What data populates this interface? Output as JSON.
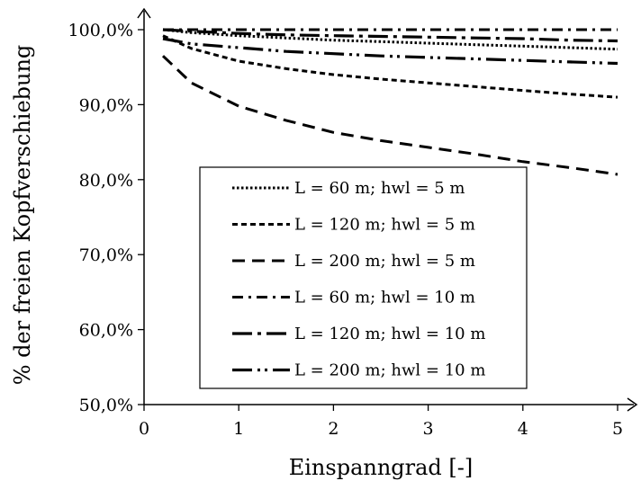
{
  "chart_data": {
    "type": "line",
    "xlabel": "Einspanngrad [-]",
    "ylabel": "% der freien Kopfverschiebung",
    "xlim": [
      0,
      5
    ],
    "ylim": [
      50,
      100
    ],
    "x_ticks": [
      0,
      1,
      2,
      3,
      4,
      5
    ],
    "x_tick_labels": [
      "0",
      "1",
      "2",
      "3",
      "4",
      "5"
    ],
    "y_ticks": [
      50,
      60,
      70,
      80,
      90,
      100
    ],
    "y_tick_labels": [
      "50,0%",
      "60,0%",
      "70,0%",
      "80,0%",
      "90,0%",
      "100,0%"
    ],
    "grid": false,
    "legend_position": "center",
    "series": [
      {
        "name": "L = 60 m; hwl = 5 m",
        "dash": "dotted",
        "x": [
          0.2,
          0.5,
          1,
          1.5,
          2,
          2.5,
          3,
          3.5,
          4,
          4.5,
          5
        ],
        "y": [
          100,
          99.6,
          99.2,
          98.9,
          98.6,
          98.4,
          98.2,
          98.0,
          97.8,
          97.6,
          97.4
        ]
      },
      {
        "name": "L = 120 m; hwl = 5 m",
        "dash": "short-dash",
        "x": [
          0.2,
          0.5,
          1,
          1.5,
          2,
          2.5,
          3,
          3.5,
          4,
          4.5,
          5
        ],
        "y": [
          99.2,
          97.5,
          95.8,
          94.8,
          94.0,
          93.4,
          92.9,
          92.4,
          91.9,
          91.4,
          91.0
        ]
      },
      {
        "name": "L = 200 m; hwl = 5 m",
        "dash": "long-dash",
        "x": [
          0.2,
          0.5,
          1,
          1.5,
          2,
          2.5,
          3,
          3.5,
          4,
          4.5,
          5
        ],
        "y": [
          96.5,
          92.9,
          89.8,
          87.9,
          86.3,
          85.2,
          84.3,
          83.4,
          82.4,
          81.6,
          80.7
        ]
      },
      {
        "name": "L = 60 m; hwl = 10 m",
        "dash": "dash-dot",
        "x": [
          0.2,
          0.5,
          1,
          1.5,
          2,
          2.5,
          3,
          3.5,
          4,
          4.5,
          5
        ],
        "y": [
          100,
          100,
          100,
          100,
          100,
          100,
          100,
          100,
          100,
          100,
          100
        ]
      },
      {
        "name": "L = 120 m; hwl = 10 m",
        "dash": "long-dash-dot",
        "x": [
          0.2,
          0.5,
          1,
          1.5,
          2,
          2.5,
          3,
          3.5,
          4,
          4.5,
          5
        ],
        "y": [
          100,
          99.8,
          99.5,
          99.3,
          99.2,
          99.1,
          99.0,
          98.9,
          98.8,
          98.6,
          98.5
        ]
      },
      {
        "name": "L = 200 m; hwl = 10 m",
        "dash": "long-dash-dot-dot",
        "x": [
          0.2,
          0.5,
          1,
          1.5,
          2,
          2.5,
          3,
          3.5,
          4,
          4.5,
          5
        ],
        "y": [
          98.8,
          98.1,
          97.6,
          97.1,
          96.8,
          96.5,
          96.3,
          96.1,
          95.9,
          95.7,
          95.5
        ]
      }
    ]
  }
}
